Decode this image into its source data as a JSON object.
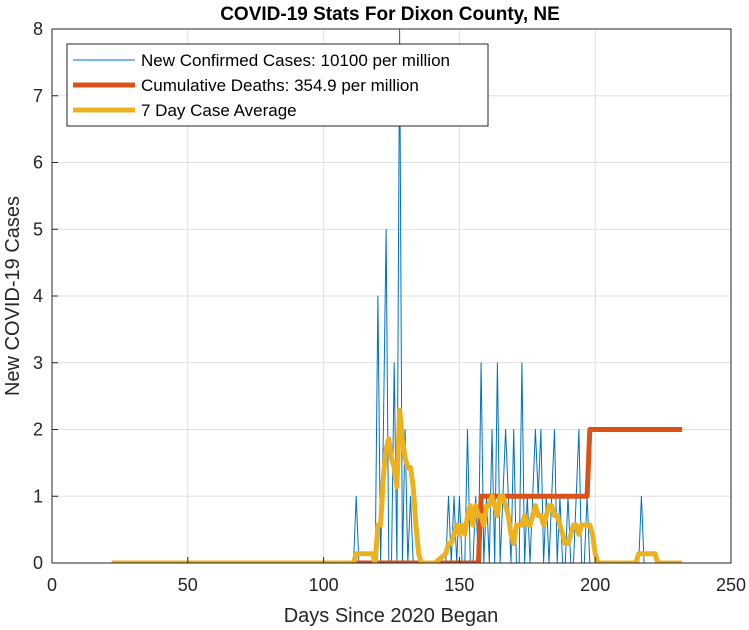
{
  "chart_data": {
    "type": "line",
    "title": "COVID-19 Stats For Dixon County, NE",
    "xlabel": "Days Since 2020 Began",
    "ylabel": "New COVID-19 Cases",
    "xlim": [
      0,
      250
    ],
    "ylim": [
      0,
      8
    ],
    "xticks": [
      0,
      50,
      100,
      150,
      200,
      250
    ],
    "yticks": [
      0,
      1,
      2,
      3,
      4,
      5,
      6,
      7,
      8
    ],
    "grid": true,
    "legend_position": "top-left",
    "series": [
      {
        "name": "New Confirmed Cases: 10100 per million",
        "color": "#0072BD",
        "line_width": "thin",
        "x": [
          22,
          100,
          111,
          112,
          113,
          119,
          120,
          121,
          122,
          123,
          124,
          125,
          126,
          127,
          128,
          129,
          130,
          131,
          132,
          133,
          134,
          135,
          136,
          137,
          138,
          139,
          140,
          145,
          146,
          147,
          148,
          149,
          150,
          151,
          152,
          153,
          154,
          155,
          156,
          157,
          158,
          159,
          160,
          161,
          162,
          163,
          164,
          165,
          166,
          167,
          168,
          169,
          170,
          171,
          172,
          173,
          174,
          175,
          176,
          177,
          178,
          179,
          180,
          181,
          182,
          183,
          184,
          185,
          186,
          187,
          188,
          189,
          190,
          191,
          192,
          193,
          194,
          195,
          196,
          197,
          198,
          199,
          200,
          205,
          210,
          215,
          216,
          217,
          218,
          219,
          220,
          225,
          232
        ],
        "y": [
          0,
          0,
          0,
          1,
          0,
          0,
          4,
          0,
          2,
          5,
          0,
          0,
          3,
          0,
          8,
          0,
          2,
          0,
          1,
          0,
          0,
          0,
          0,
          0,
          0,
          0,
          0,
          0,
          1,
          0,
          1,
          0,
          1,
          0,
          0,
          2,
          0,
          0,
          1,
          0,
          3,
          0,
          1,
          0,
          2,
          0,
          3,
          0,
          1,
          2,
          1,
          0,
          2,
          0,
          0,
          3,
          0,
          1,
          0,
          1,
          2,
          1,
          2,
          0,
          1,
          0,
          1,
          2,
          0,
          1,
          0,
          0,
          1,
          0,
          0,
          1,
          2,
          0,
          0,
          1,
          0,
          0,
          0,
          0,
          0,
          0,
          0,
          1,
          0,
          0,
          0,
          0,
          0
        ]
      },
      {
        "name": "Cumulative Deaths: 354.9 per million",
        "color": "#D95319",
        "line_width": "thick",
        "x": [
          22,
          157,
          158,
          197,
          198,
          232
        ],
        "y": [
          0,
          0,
          1,
          1,
          2,
          2
        ]
      },
      {
        "name": "7 Day Case Average",
        "color": "#EDB120",
        "line_width": "thick",
        "x": [
          22,
          111,
          112,
          118,
          119,
          120,
          121,
          122,
          123,
          124,
          125,
          126,
          127,
          128,
          129,
          130,
          131,
          132,
          133,
          134,
          135,
          136,
          137,
          138,
          139,
          140,
          141,
          145,
          146,
          147,
          148,
          149,
          150,
          151,
          152,
          153,
          154,
          155,
          156,
          157,
          158,
          159,
          160,
          161,
          162,
          163,
          164,
          165,
          166,
          167,
          168,
          169,
          170,
          171,
          172,
          173,
          174,
          175,
          176,
          177,
          178,
          179,
          180,
          181,
          182,
          183,
          184,
          185,
          186,
          187,
          188,
          189,
          190,
          191,
          192,
          193,
          194,
          195,
          196,
          197,
          198,
          199,
          200,
          201,
          202,
          205,
          210,
          215,
          216,
          217,
          218,
          219,
          220,
          222,
          223,
          225,
          226,
          232
        ],
        "y": [
          0,
          0,
          0.14,
          0.14,
          0,
          0.57,
          0.57,
          1.29,
          1.71,
          1.86,
          1.57,
          1.43,
          1.14,
          2.29,
          1.86,
          1.57,
          1.43,
          1.43,
          1.14,
          0.57,
          0.14,
          0,
          0,
          0,
          0,
          0,
          0,
          0.14,
          0.29,
          0.29,
          0.43,
          0.57,
          0.43,
          0.57,
          0.43,
          0.71,
          0.86,
          0.57,
          0.86,
          0.71,
          0.71,
          0.57,
          0.86,
          0.86,
          1.0,
          0.86,
          0.71,
          1.0,
          1.0,
          0.86,
          0.71,
          0.43,
          0.29,
          0.57,
          0.57,
          0.57,
          0.71,
          0.57,
          0.57,
          0.71,
          0.86,
          0.71,
          0.71,
          0.57,
          0.71,
          0.86,
          0.86,
          0.71,
          0.71,
          0.57,
          0.43,
          0.29,
          0.29,
          0.43,
          0.57,
          0.57,
          0.43,
          0.57,
          0.57,
          0.57,
          0.57,
          0.43,
          0.14,
          0,
          0,
          0,
          0,
          0,
          0.14,
          0.14,
          0.14,
          0.14,
          0.14,
          0.14,
          0,
          0,
          0,
          0
        ]
      }
    ]
  }
}
